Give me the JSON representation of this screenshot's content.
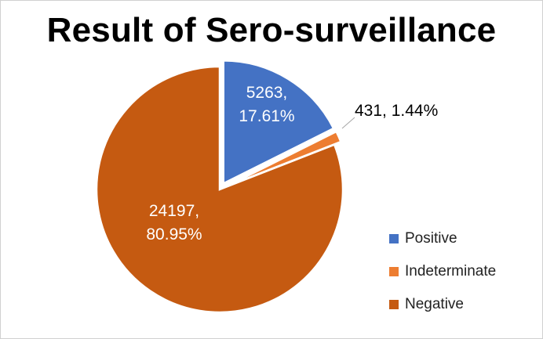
{
  "chart_data": {
    "type": "pie",
    "title": "Result of Sero-surveillance",
    "categories": [
      "Positive",
      "Indeterminate",
      "Negative"
    ],
    "values": [
      5263,
      431,
      24197
    ],
    "percents": [
      "17.61%",
      "1.44%",
      "80.95%"
    ],
    "data_labels": [
      [
        "5263,",
        "17.61%"
      ],
      [
        "431, 1.44%"
      ],
      [
        "24197,",
        "80.95%"
      ]
    ],
    "colors": [
      "#4472C4",
      "#ED7D31",
      "#C55A11"
    ],
    "label_colors": [
      "#ffffff",
      "#000000",
      "#ffffff"
    ],
    "exploded": [
      "Positive",
      "Indeterminate"
    ],
    "start_angle_deg": 0,
    "legend": {
      "position": "right",
      "items": [
        "Positive",
        "Indeterminate",
        "Negative"
      ]
    }
  }
}
